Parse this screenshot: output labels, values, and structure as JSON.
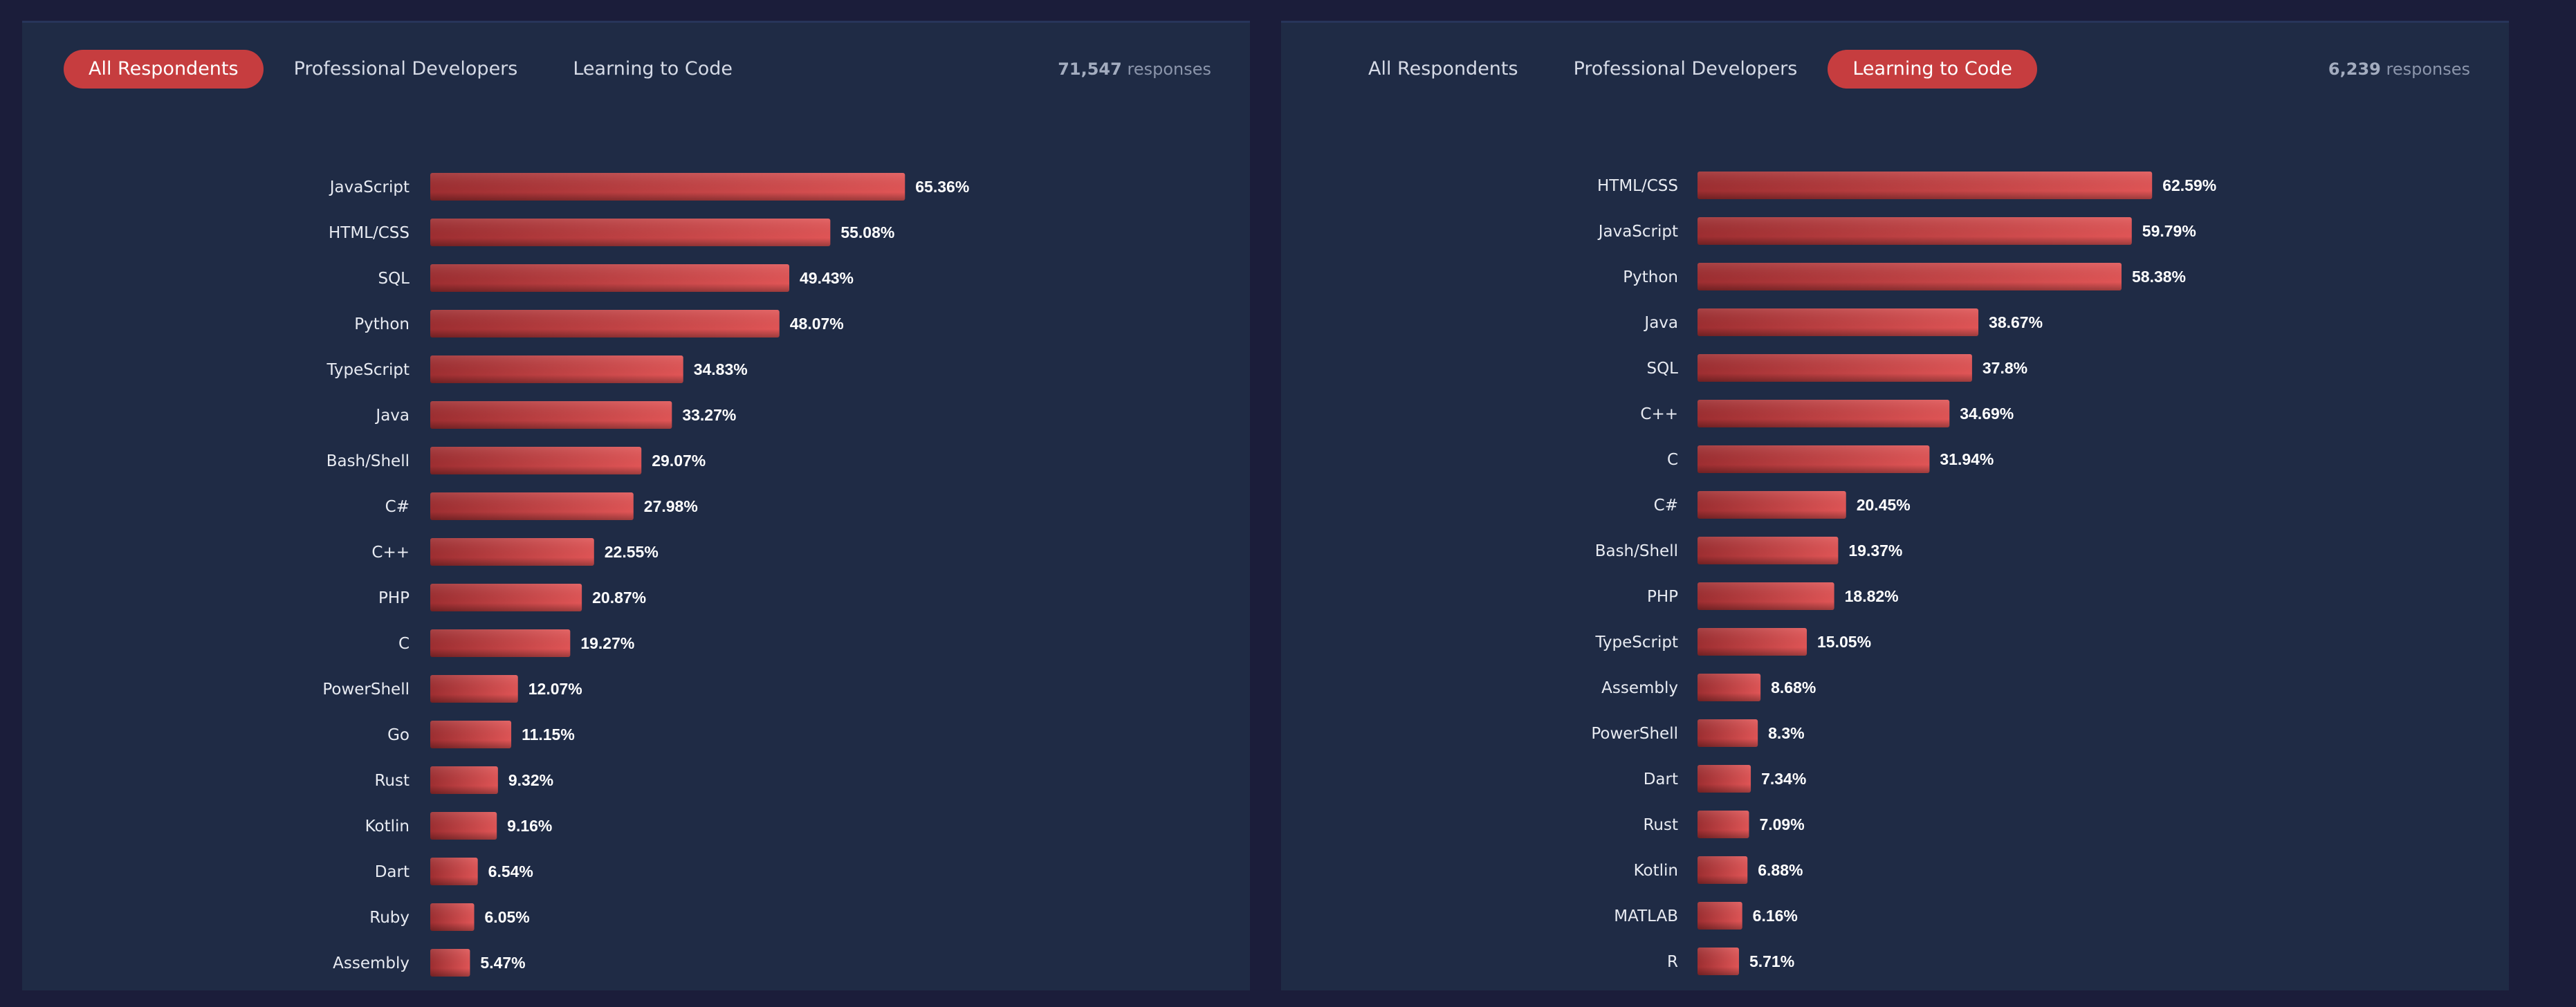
{
  "panels": [
    {
      "tabs": [
        {
          "label": "All Respondents",
          "active": true
        },
        {
          "label": "Professional Developers",
          "active": false
        },
        {
          "label": "Learning to Code",
          "active": false
        }
      ],
      "responses": {
        "count": "71,547",
        "suffix": "responses"
      }
    },
    {
      "tabs": [
        {
          "label": "All Respondents",
          "active": false
        },
        {
          "label": "Professional Developers",
          "active": false
        },
        {
          "label": "Learning to Code",
          "active": true
        }
      ],
      "responses": {
        "count": "6,239",
        "suffix": "responses"
      }
    }
  ],
  "colors": {
    "bar": "#c63d3f",
    "bar_dark": "#9e2e31",
    "bar_light": "#e05556",
    "panel": "#1f2b45"
  },
  "chart_data": [
    {
      "type": "bar",
      "orientation": "horizontal",
      "title": "",
      "categories": [
        "JavaScript",
        "HTML/CSS",
        "SQL",
        "Python",
        "TypeScript",
        "Java",
        "Bash/Shell",
        "C#",
        "C++",
        "PHP",
        "C",
        "PowerShell",
        "Go",
        "Rust",
        "Kotlin",
        "Dart",
        "Ruby",
        "Assembly"
      ],
      "values": [
        65.36,
        55.08,
        49.43,
        48.07,
        34.83,
        33.27,
        29.07,
        27.98,
        22.55,
        20.87,
        19.27,
        12.07,
        11.15,
        9.32,
        9.16,
        6.54,
        6.05,
        5.47
      ],
      "value_labels": [
        "65.36%",
        "55.08%",
        "49.43%",
        "48.07%",
        "34.83%",
        "33.27%",
        "29.07%",
        "27.98%",
        "22.55%",
        "20.87%",
        "19.27%",
        "12.07%",
        "11.15%",
        "9.32%",
        "9.16%",
        "6.54%",
        "6.05%",
        "5.47%"
      ],
      "xlim": [
        0,
        100
      ],
      "grid": false
    },
    {
      "type": "bar",
      "orientation": "horizontal",
      "title": "",
      "categories": [
        "HTML/CSS",
        "JavaScript",
        "Python",
        "Java",
        "SQL",
        "C++",
        "C",
        "C#",
        "Bash/Shell",
        "PHP",
        "TypeScript",
        "Assembly",
        "PowerShell",
        "Dart",
        "Rust",
        "Kotlin",
        "MATLAB",
        "R"
      ],
      "values": [
        62.59,
        59.79,
        58.38,
        38.67,
        37.8,
        34.69,
        31.94,
        20.45,
        19.37,
        18.82,
        15.05,
        8.68,
        8.3,
        7.34,
        7.09,
        6.88,
        6.16,
        5.71
      ],
      "value_labels": [
        "62.59%",
        "59.79%",
        "58.38%",
        "38.67%",
        "37.8%",
        "34.69%",
        "31.94%",
        "20.45%",
        "19.37%",
        "18.82%",
        "15.05%",
        "8.68%",
        "8.3%",
        "7.34%",
        "7.09%",
        "6.88%",
        "6.16%",
        "5.71%"
      ],
      "xlim": [
        0,
        100
      ],
      "grid": false
    }
  ]
}
